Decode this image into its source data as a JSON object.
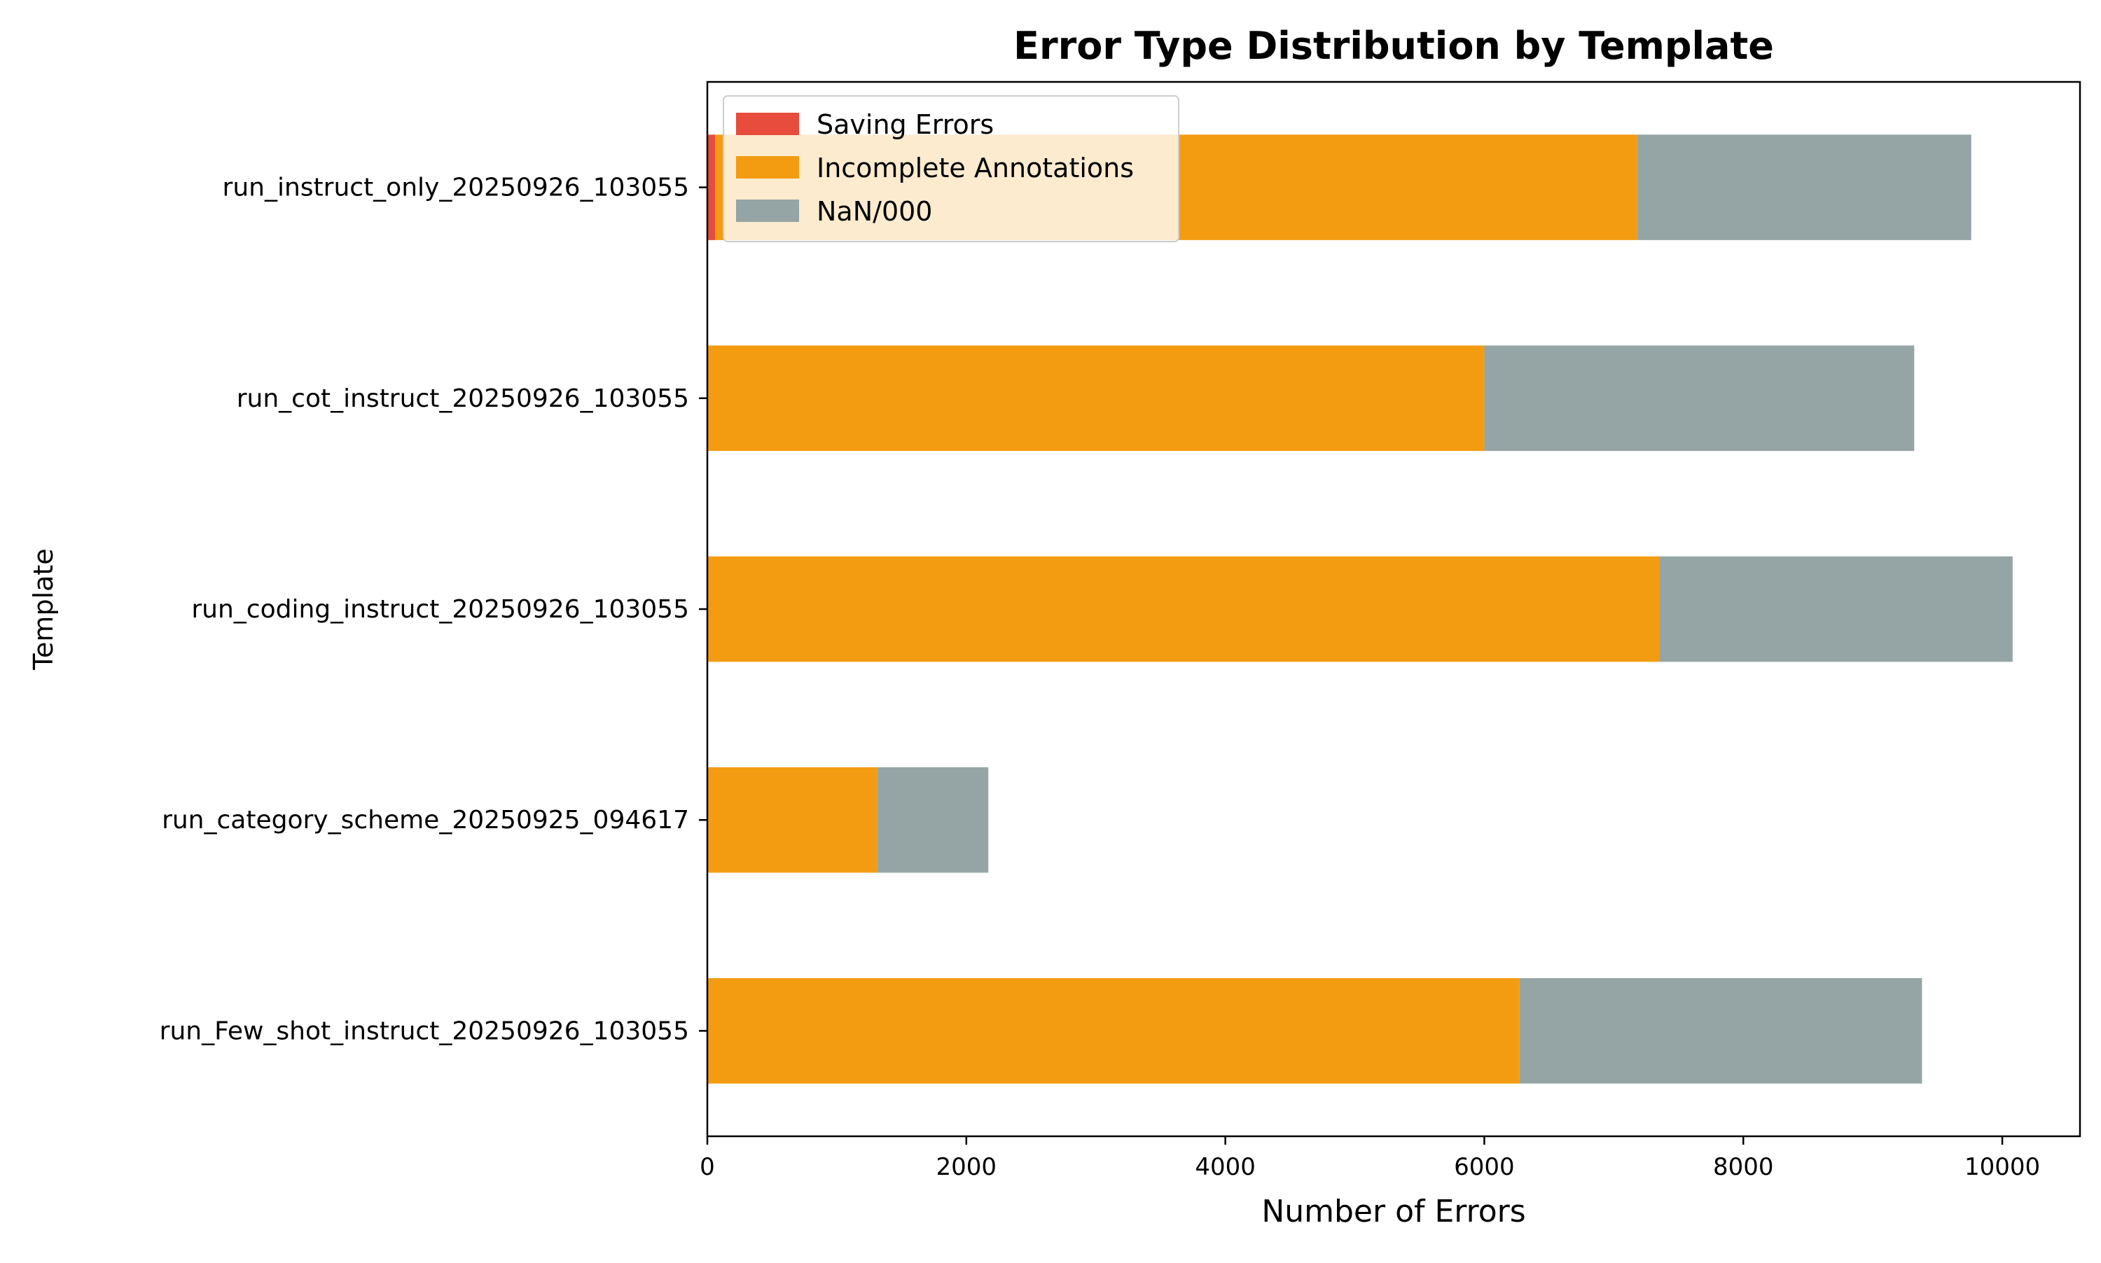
{
  "chart_data": {
    "type": "bar",
    "orientation": "horizontal",
    "stacked": true,
    "title": "Error Type Distribution by Template",
    "xlabel": "Number of Errors",
    "ylabel": "Template",
    "xlim": [
      0,
      10600
    ],
    "x_ticks": [
      0,
      2000,
      4000,
      6000,
      8000,
      10000
    ],
    "grid": false,
    "legend_position": "top-left",
    "categories": [
      "run_instruct_only_20250926_103055",
      "run_cot_instruct_20250926_103055",
      "run_coding_instruct_20250926_103055",
      "run_category_scheme_20250925_094617",
      "run_Few_shot_instruct_20250926_103055"
    ],
    "series": [
      {
        "name": "Saving Errors",
        "color": "#e74c3c",
        "values": [
          60,
          0,
          0,
          0,
          0
        ]
      },
      {
        "name": "Incomplete Annotations",
        "color": "#f39c12",
        "values": [
          7120,
          6000,
          7350,
          1310,
          6270
        ]
      },
      {
        "name": "NaN/000",
        "color": "#95a5a6",
        "values": [
          2580,
          3320,
          2730,
          860,
          3110
        ]
      }
    ]
  }
}
